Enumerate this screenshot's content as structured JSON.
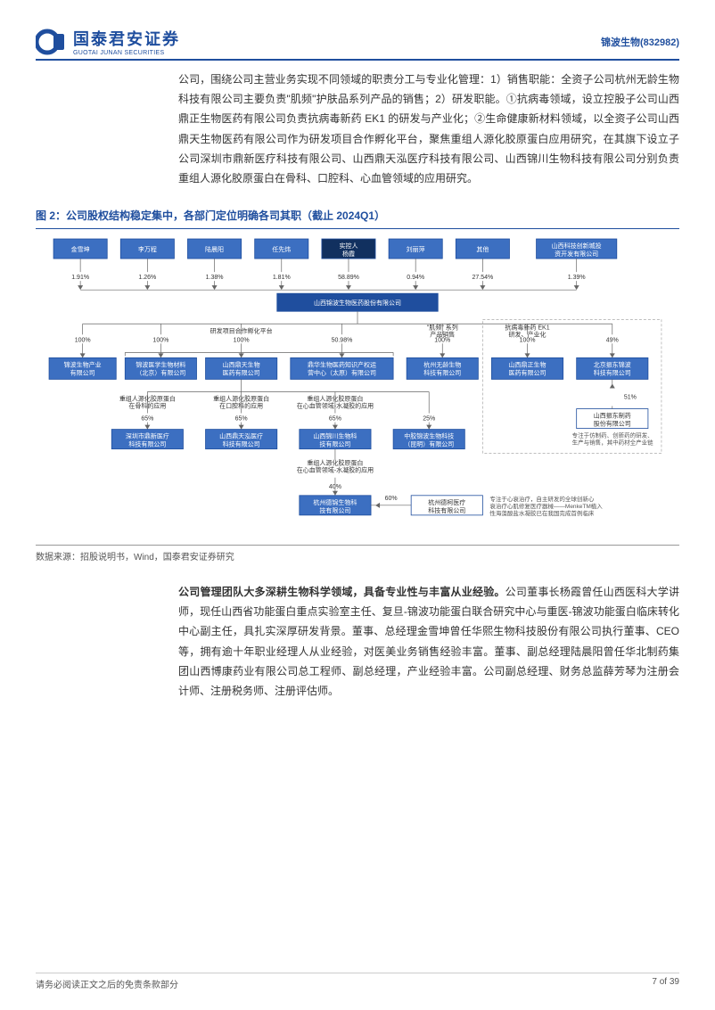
{
  "colors": {
    "brand": "#1f4e9e",
    "brand_light": "#3c6fc1",
    "dark_navy": "#11305f",
    "box_border": "#1f4e9e",
    "line": "#666666",
    "text": "#333333",
    "muted": "#555555"
  },
  "header": {
    "company_cn": "国泰君安证券",
    "company_en": "GUOTAI JUNAN SECURITIES",
    "stock": "锦波生物(832982)"
  },
  "paragraph1": "公司，围绕公司主营业务实现不同领域的职责分工与专业化管理：1）销售职能：全资子公司杭州无龄生物科技有限公司主要负责\"肌频\"护肤品系列产品的销售；2）研发职能。①抗病毒领域，设立控股子公司山西鼎正生物医药有限公司负责抗病毒新药 EK1 的研发与产业化；②生命健康新材料领域，以全资子公司山西鼎天生物医药有限公司作为研发项目合作孵化平台，聚焦重组人源化胶原蛋白应用研究，在其旗下设立子公司深圳市鼎新医疗科技有限公司、山西鼎天泓医疗科技有限公司、山西锦川生物科技有限公司分别负责重组人源化胶原蛋白在骨科、口腔科、心血管领域的应用研究。",
  "fig_title": "图 2：公司股权结构稳定集中，各部门定位明确各司其职（截止 2024Q1）",
  "source": "数据来源：招股说明书，Wind，国泰君安证券研究",
  "paragraph2_bold": "公司管理团队大多深耕生物科学领域，具备专业性与丰富从业经验。",
  "paragraph2_rest": "公司董事长杨霞曾任山西医科大学讲师，现任山西省功能蛋白重点实验室主任、复旦-锦波功能蛋白联合研究中心与重医-锦波功能蛋白临床转化中心副主任，具扎实深厚研发背景。董事、总经理金雪坤曾任华熙生物科技股份有限公司执行董事、CEO 等，拥有逾十年职业经理人从业经验，对医美业务销售经验丰富。董事、副总经理陆晨阳曾任华北制药集团山西博康药业有限公司总工程师、副总经理，产业经验丰富。公司副总经理、财务总监薛芳琴为注册会计师、注册税务师、注册评估师。",
  "footer": {
    "disclaimer": "请务必阅读正文之后的免责条款部分",
    "page": "7 of 39"
  },
  "org": {
    "shareholders": [
      {
        "name": "金雪坤",
        "pct": "1.91%"
      },
      {
        "name": "李万程",
        "pct": "1.26%"
      },
      {
        "name": "陆晨阳",
        "pct": "1.38%"
      },
      {
        "name": "任先炜",
        "pct": "1.81%"
      },
      {
        "name_l1": "实控人",
        "name_l2": "杨霞",
        "pct": "58.89%",
        "highlight": true
      },
      {
        "name": "刘丽萍",
        "pct": "0.94%"
      },
      {
        "name": "其他",
        "pct": "27.54%"
      },
      {
        "name_l1": "山西科技创新城投",
        "name_l2": "资开发有限公司",
        "pct": "1.39%"
      }
    ],
    "main": "山西锦波生物医药股份有限公司",
    "row3_labels": {
      "rnd": "研发项目合作孵化平台",
      "sales": "\"肌频\" 系列\n产品销售",
      "ek1": "抗病毒新药 EK1\n研发、产业化"
    },
    "subs": [
      {
        "name_l1": "锦波生物产业",
        "name_l2": "有限公司",
        "pct": "100%"
      },
      {
        "name_l1": "锦波医学生物材料",
        "name_l2": "（北京）有限公司",
        "pct": "100%"
      },
      {
        "name_l1": "山西鼎天生物",
        "name_l2": "医药有限公司",
        "pct": "100%"
      },
      {
        "name_l1": "鼎华生物医药知识产权运",
        "name_l2": "营中心（太原）有限公司",
        "pct": "50.98%"
      },
      {
        "name_l1": "杭州无龄生物",
        "name_l2": "科技有限公司",
        "pct": "100%"
      },
      {
        "name_l1": "山西鼎正生物",
        "name_l2": "医药有限公司",
        "pct": "100%"
      },
      {
        "name_l1": "北京振东锦波",
        "name_l2": "科技有限公司",
        "pct": "49%"
      }
    ],
    "side": {
      "name_l1": "山西振东制药",
      "name_l2": "股份有限公司",
      "pct": "51%",
      "note_l1": "专注于仿制药、创新药的研发、",
      "note_l2": "生产与销售，其中药材全产业链"
    },
    "row4_labels": [
      "重组人源化胶原蛋白\n在骨科的应用",
      "重组人源化胶原蛋白\n在口腔科的应用",
      "重组人源化胶原蛋白\n在心血管领域-水凝胶的应用"
    ],
    "row4": [
      {
        "name_l1": "深圳市鼎新医疗",
        "name_l2": "科技有限公司",
        "pct": "65%"
      },
      {
        "name_l1": "山西鼎天泓医疗",
        "name_l2": "科技有限公司",
        "pct": "65%"
      },
      {
        "name_l1": "山西锦川生物科",
        "name_l2": "技有限公司",
        "pct": "65%"
      },
      {
        "name_l1": "中胶锦波生物科技",
        "name_l2": "（昆明）有限公司",
        "pct": "25%"
      }
    ],
    "row5_label": "重组人源化胶原蛋白\n在心血管领域-水凝胶的应用",
    "row5": [
      {
        "name_l1": "杭州德锦生物科",
        "name_l2": "技有限公司",
        "pct": "40%"
      },
      {
        "name_l1": "杭州德柯医疗",
        "name_l2": "科技有限公司",
        "pct": "60%",
        "outlined": true,
        "note_l1": "专注于心衰治疗，自主研发的全球创新心",
        "note_l2": "衰治疗心肌修复医疗器械——MenkeTM植入",
        "note_l3": "性海藻酸盐水凝胶已在我国完成首例临床"
      }
    ]
  }
}
